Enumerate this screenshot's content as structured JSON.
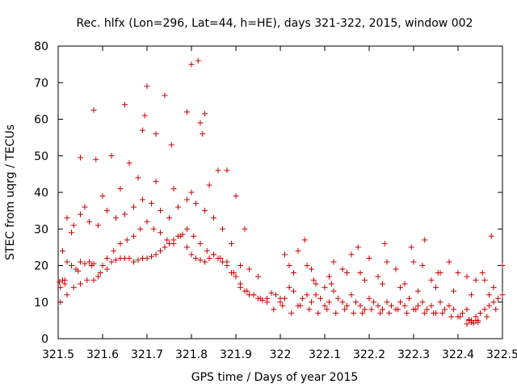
{
  "chart_data": {
    "type": "scatter",
    "title": "Rec. hlfx (Lon=296, Lat=44, h=HE), days 321-322, 2015, window 002",
    "xlabel": "GPS time / Days of year 2015",
    "ylabel": "STEC from uqrg / TECUs",
    "xlim": [
      321.5,
      322.5
    ],
    "ylim": [
      0,
      80
    ],
    "xticks": [
      "321.5",
      "321.6",
      "321.7",
      "321.8",
      "321.9",
      "322",
      "322.1",
      "322.2",
      "322.3",
      "322.4",
      "322.5"
    ],
    "yticks": [
      "0",
      "10",
      "20",
      "30",
      "40",
      "50",
      "60",
      "70",
      "80"
    ],
    "marker": "plus",
    "color": "#cc0000",
    "series": [
      {
        "name": "STEC",
        "x": [
          321.503,
          321.51,
          321.515,
          321.52,
          321.53,
          321.54,
          321.545,
          321.55,
          321.56,
          321.57,
          321.575,
          321.58,
          321.59,
          321.6,
          321.61,
          321.62,
          321.63,
          321.64,
          321.65,
          321.66,
          321.67,
          321.68,
          321.69,
          321.7,
          321.71,
          321.72,
          321.73,
          321.74,
          321.75,
          321.76,
          321.77,
          321.78,
          321.79,
          321.8,
          321.81,
          321.82,
          321.83,
          321.84,
          321.85,
          321.86,
          321.87,
          321.88,
          321.89,
          321.9,
          321.91,
          321.92,
          321.93,
          321.94,
          321.95,
          321.96,
          321.97,
          321.505,
          321.52,
          321.535,
          321.55,
          321.565,
          321.58,
          321.595,
          321.61,
          321.625,
          321.64,
          321.655,
          321.67,
          321.685,
          321.7,
          321.715,
          321.73,
          321.745,
          321.76,
          321.775,
          321.79,
          321.805,
          321.82,
          321.835,
          321.85,
          321.865,
          321.88,
          321.895,
          321.91,
          321.925,
          321.94,
          321.955,
          321.97,
          321.51,
          321.53,
          321.55,
          321.57,
          321.59,
          321.61,
          321.63,
          321.65,
          321.67,
          321.69,
          321.71,
          321.73,
          321.75,
          321.77,
          321.79,
          321.81,
          321.83,
          321.85,
          321.87,
          321.89,
          321.91,
          321.93,
          321.95,
          321.52,
          321.56,
          321.6,
          321.64,
          321.68,
          321.72,
          321.76,
          321.8,
          321.84,
          321.88,
          321.92,
          321.58,
          321.65,
          321.695,
          321.7,
          321.74,
          321.8,
          321.815,
          321.82,
          321.83,
          321.505,
          321.515,
          321.535,
          321.55,
          321.585,
          321.62,
          321.66,
          321.69,
          321.72,
          321.755,
          321.79,
          321.825,
          321.86,
          321.9,
          321.98,
          321.99,
          322.0,
          322.01,
          322.02,
          322.03,
          322.04,
          322.05,
          322.06,
          322.07,
          322.08,
          322.09,
          322.1,
          322.11,
          322.12,
          322.13,
          322.14,
          322.15,
          322.16,
          322.17,
          322.18,
          322.19,
          322.2,
          322.21,
          322.22,
          322.23,
          322.24,
          322.25,
          322.26,
          322.27,
          322.28,
          322.29,
          322.3,
          322.31,
          322.32,
          322.33,
          322.34,
          322.35,
          322.36,
          322.37,
          322.38,
          322.39,
          322.4,
          322.41,
          322.42,
          322.43,
          322.44,
          322.45,
          322.46,
          322.47,
          322.48,
          322.49,
          322.5,
          321.985,
          322.005,
          322.025,
          322.045,
          322.065,
          322.085,
          322.105,
          322.125,
          322.145,
          322.165,
          322.185,
          322.205,
          322.225,
          322.245,
          322.265,
          322.285,
          322.305,
          322.325,
          322.345,
          322.365,
          322.385,
          322.405,
          322.425,
          322.445,
          322.465,
          322.485,
          322.0,
          322.02,
          322.04,
          322.06,
          322.08,
          322.1,
          322.12,
          322.14,
          322.16,
          322.18,
          322.2,
          322.22,
          322.24,
          322.26,
          322.28,
          322.3,
          322.32,
          322.34,
          322.36,
          322.38,
          322.4,
          322.42,
          322.44,
          322.46,
          322.48,
          322.5,
          322.01,
          322.055,
          322.075,
          322.115,
          322.175,
          322.235,
          322.295,
          322.325,
          322.355,
          322.455,
          322.475,
          322.03,
          322.07,
          322.11,
          322.15,
          322.19,
          322.23,
          322.27,
          322.31,
          322.35,
          322.39,
          322.43,
          322.47,
          322.42,
          322.43,
          322.44,
          322.445,
          322.435,
          322.425
        ],
        "y": [
          15.5,
          16,
          15,
          21,
          20,
          19,
          18.5,
          21,
          20.5,
          21,
          20,
          20.5,
          17,
          20,
          19,
          21,
          21.5,
          22,
          22,
          22,
          21,
          21.5,
          22,
          22,
          22.5,
          23,
          24,
          25,
          26,
          27,
          28,
          28.5,
          25,
          23,
          22,
          21.5,
          21,
          22,
          23,
          22,
          21,
          20,
          18,
          17,
          14,
          13,
          12,
          12,
          11,
          10.5,
          11,
          10,
          12,
          14,
          15,
          16,
          16,
          18,
          22,
          24,
          26,
          27,
          28,
          30,
          32,
          30,
          29,
          27,
          26,
          28,
          30,
          28,
          26,
          24,
          23,
          22,
          21,
          18,
          15,
          13,
          12,
          11,
          10,
          24,
          29,
          34,
          32,
          31,
          35,
          33,
          34,
          36,
          38,
          37,
          35,
          33,
          36,
          38,
          37,
          35,
          33,
          30,
          26,
          20,
          19,
          17,
          33,
          36,
          39,
          41,
          44,
          43,
          41,
          40,
          42,
          46,
          30,
          62.5,
          64,
          61,
          69,
          66.5,
          75,
          76,
          59,
          61.5,
          14,
          16,
          31,
          49.5,
          49,
          50,
          48,
          57,
          56,
          53,
          62,
          56,
          46,
          39,
          12.5,
          12,
          10,
          11,
          14,
          13,
          9,
          11,
          12,
          10,
          12,
          11,
          9,
          10,
          13,
          11,
          10,
          9,
          12,
          10,
          9,
          8,
          11,
          10,
          9,
          8,
          10,
          9,
          8,
          10,
          9,
          11,
          8,
          9,
          10,
          8,
          9,
          7,
          10,
          8,
          9,
          8,
          6,
          7,
          8,
          5,
          6,
          7,
          8,
          9,
          10,
          11,
          12,
          8,
          9,
          7,
          9,
          8,
          7,
          8,
          7,
          8,
          7,
          7,
          8,
          7,
          7,
          8,
          7,
          8,
          7,
          7,
          7,
          6,
          6,
          5,
          5,
          6,
          8,
          11,
          20,
          24,
          20,
          15,
          14,
          21,
          19,
          23,
          18,
          22,
          17,
          21,
          19,
          15,
          21,
          20,
          16,
          18,
          21,
          18,
          17,
          16,
          16,
          14,
          20,
          23,
          27,
          16,
          15,
          25,
          26,
          25,
          27,
          18,
          18,
          28,
          18,
          19,
          17,
          18,
          16,
          15,
          14,
          13,
          14,
          13,
          12,
          12,
          4,
          4.5,
          5,
          4.5,
          4.2,
          5.2
        ]
      }
    ]
  }
}
